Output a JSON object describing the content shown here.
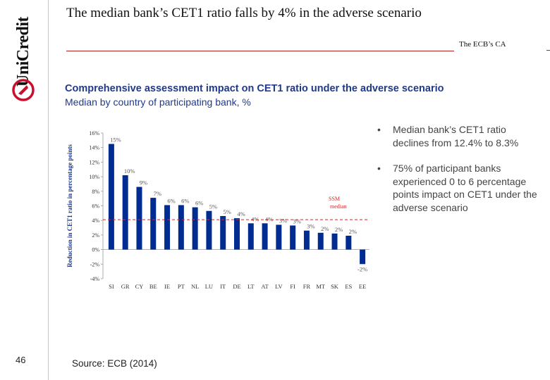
{
  "brand": {
    "logo_text": "UniCredit",
    "accent": "#c8102e"
  },
  "page": {
    "number": "46"
  },
  "header": {
    "title": "The median bank’s CET1 ratio falls by 4% in the adverse scenario",
    "section_tag": "The ECB’s CA"
  },
  "chart_header": {
    "title": "Comprehensive assessment impact on CET1 ratio under the adverse scenario",
    "subtitle": "Median by country of participating bank, %"
  },
  "bullets": [
    "Median bank’s CET1 ratio declines from 12.4% to 8.3%",
    "75% of participant banks experienced  0 to 6 percentage points impact on CET1 under the adverse scenario"
  ],
  "source": "Source: ECB (2014)",
  "chart_data": {
    "type": "bar",
    "title": "Comprehensive assessment impact on CET1 ratio under the adverse scenario",
    "subtitle": "Median by country of participating bank, %",
    "xlabel": "",
    "ylabel": "Reduction in CET1 ratio in percentage points",
    "ylim": [
      -4,
      16
    ],
    "yticks": [
      -4,
      -2,
      0,
      2,
      4,
      6,
      8,
      10,
      12,
      14,
      16
    ],
    "ytick_labels": [
      "-4%",
      "-2%",
      "0%",
      "2%",
      "4%",
      "6%",
      "8%",
      "10%",
      "12%",
      "14%",
      "16%"
    ],
    "categories": [
      "SI",
      "GR",
      "CY",
      "BE",
      "IE",
      "PT",
      "NL",
      "LU",
      "IT",
      "DE",
      "LT",
      "AT",
      "LV",
      "FI",
      "FR",
      "MT",
      "SK",
      "ES",
      "EE"
    ],
    "values": [
      14.5,
      10.2,
      8.6,
      7.1,
      6.1,
      6.1,
      5.8,
      5.3,
      4.6,
      4.3,
      3.6,
      3.6,
      3.4,
      3.3,
      2.6,
      2.3,
      2.2,
      1.9,
      -2.0
    ],
    "data_labels": [
      "15%",
      "10%",
      "9%",
      "7%",
      "6%",
      "6%",
      "6%",
      "5%",
      "5%",
      "4%",
      "4%",
      "4%",
      "3%",
      "3%",
      "3%",
      "2%",
      "2%",
      "2%",
      "-2%"
    ],
    "reference_line": {
      "label_line1": "SSM",
      "label_line2": "median",
      "value": 4.1
    },
    "bar_color": "#002b91",
    "reference_color": "#d22b2b",
    "grid": false,
    "legend": "none"
  }
}
